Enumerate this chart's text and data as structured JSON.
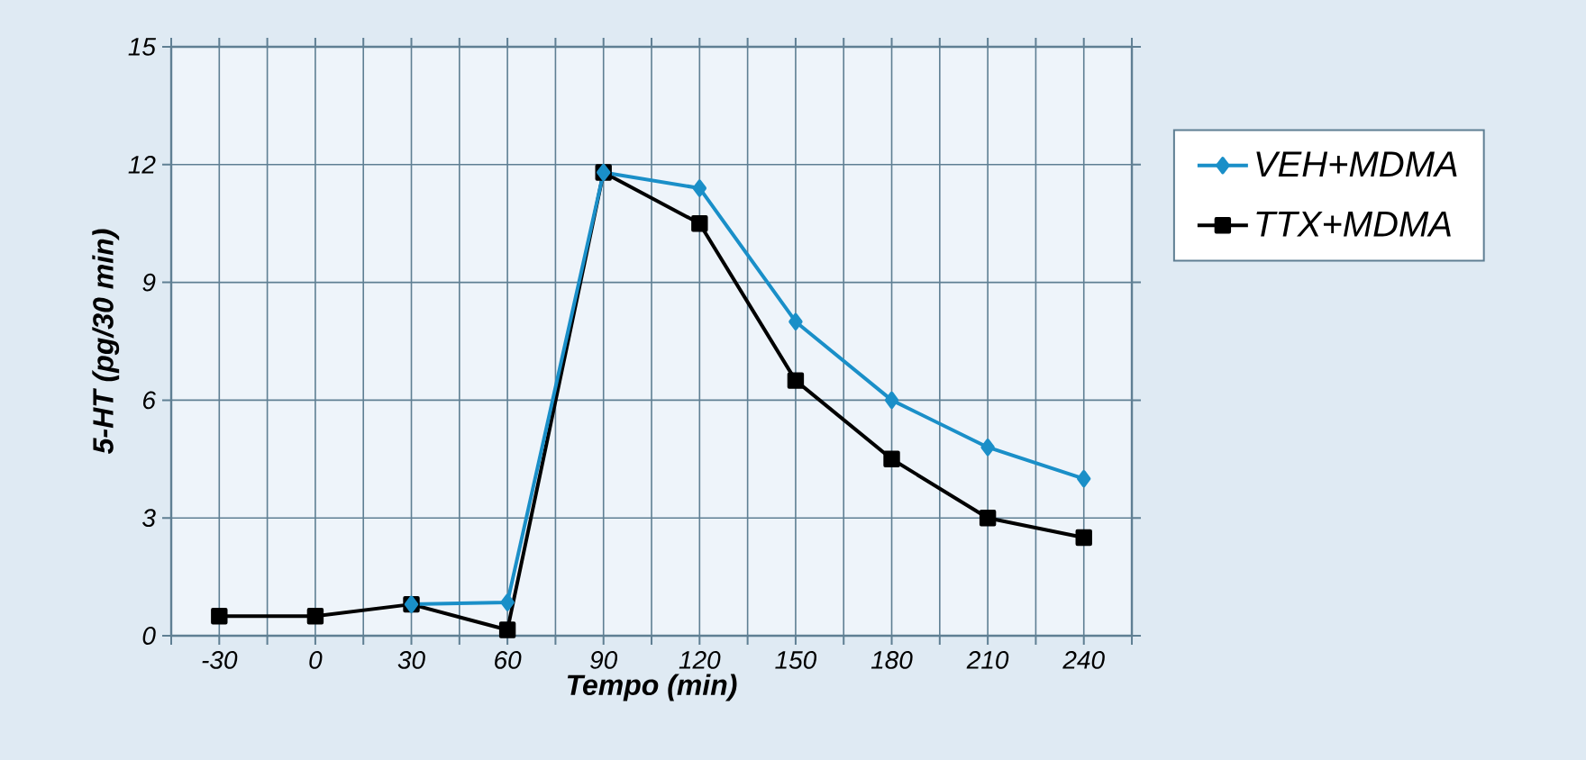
{
  "chart_data": {
    "type": "line",
    "xlabel": "Tempo (min)",
    "ylabel": "5-HT (pg/30 min)",
    "categories": [
      "-30",
      "0",
      "30",
      "60",
      "90",
      "120",
      "150",
      "180",
      "210",
      "240"
    ],
    "ylim": [
      0,
      15
    ],
    "yticks": [
      0,
      3,
      6,
      9,
      12,
      15
    ],
    "grid": true,
    "legend": "right",
    "line_style": "solid",
    "series": [
      {
        "name": "VEH+MDMA",
        "color": "#1a8fc8",
        "marker": "diamond",
        "values": [
          null,
          null,
          0.8,
          0.85,
          11.8,
          11.4,
          8,
          6,
          4.8,
          4
        ]
      },
      {
        "name": "TTX+MDMA",
        "color": "#000000",
        "marker": "square",
        "values": [
          0.5,
          0.5,
          0.8,
          0.15,
          11.8,
          10.5,
          6.5,
          4.5,
          3,
          2.5
        ]
      }
    ]
  }
}
